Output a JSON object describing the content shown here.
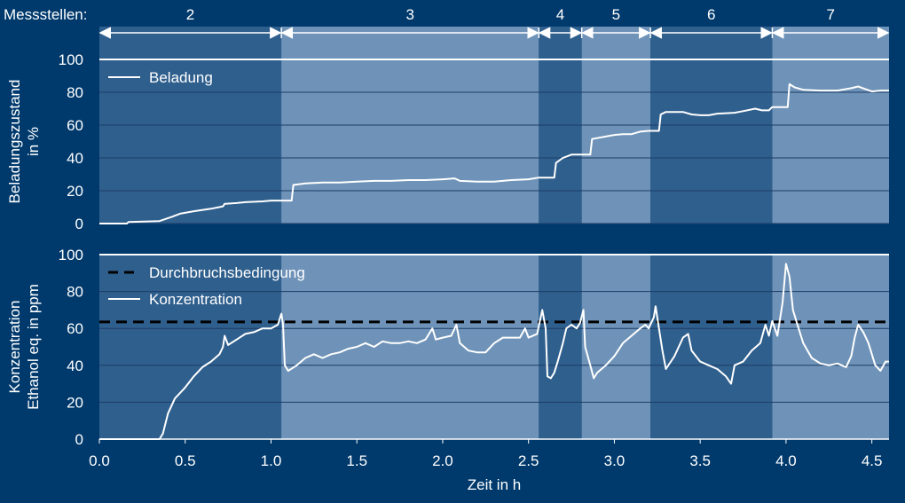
{
  "chart_data": {
    "type": "line",
    "segments_label": "Messstellen:",
    "segments": [
      {
        "label": "2",
        "x_start": 0.0,
        "x_end": 1.06
      },
      {
        "label": "3",
        "x_start": 1.06,
        "x_end": 2.56
      },
      {
        "label": "4",
        "x_start": 2.56,
        "x_end": 2.81
      },
      {
        "label": "5",
        "x_start": 2.81,
        "x_end": 3.21
      },
      {
        "label": "6",
        "x_start": 3.21,
        "x_end": 3.92
      },
      {
        "label": "7",
        "x_start": 3.92,
        "x_end": 4.6
      }
    ],
    "xlabel": "Zeit in h",
    "xlim": [
      0,
      4.6
    ],
    "xticks": [
      0.0,
      0.5,
      1.0,
      1.5,
      2.0,
      2.5,
      3.0,
      3.5,
      4.0,
      4.5
    ],
    "xtick_labels": [
      "0.0",
      "0.5",
      "1.0",
      "1.5",
      "2.0",
      "2.5",
      "3.0",
      "3.5",
      "4.0",
      "4.5"
    ],
    "grid": true,
    "panels": [
      {
        "ylabel_lines": [
          "Beladungszustand",
          "in %"
        ],
        "ylim": [
          0,
          100
        ],
        "yticks": [
          0,
          20,
          40,
          60,
          80,
          100
        ],
        "ytick_labels": [
          "0",
          "20",
          "40",
          "60",
          "80",
          "100"
        ],
        "legend_position": "top-left",
        "series": [
          {
            "name": "Beladung",
            "color": "#ffffff",
            "style": "solid",
            "points": [
              [
                0.0,
                0
              ],
              [
                0.16,
                0
              ],
              [
                0.17,
                1
              ],
              [
                0.35,
                1.5
              ],
              [
                0.42,
                4
              ],
              [
                0.47,
                6
              ],
              [
                0.55,
                7.5
              ],
              [
                0.65,
                9
              ],
              [
                0.72,
                10.5
              ],
              [
                0.73,
                12
              ],
              [
                0.8,
                12.5
              ],
              [
                0.85,
                13
              ],
              [
                0.95,
                13.5
              ],
              [
                1.0,
                14
              ],
              [
                1.06,
                14
              ],
              [
                1.07,
                14
              ],
              [
                1.12,
                14
              ],
              [
                1.13,
                23.5
              ],
              [
                1.2,
                24.5
              ],
              [
                1.3,
                25
              ],
              [
                1.4,
                25
              ],
              [
                1.5,
                25.5
              ],
              [
                1.6,
                26
              ],
              [
                1.7,
                26
              ],
              [
                1.8,
                26.5
              ],
              [
                1.9,
                26.5
              ],
              [
                2.0,
                27
              ],
              [
                2.07,
                27.5
              ],
              [
                2.1,
                26
              ],
              [
                2.2,
                25.5
              ],
              [
                2.3,
                25.5
              ],
              [
                2.4,
                26.5
              ],
              [
                2.5,
                27
              ],
              [
                2.56,
                28
              ],
              [
                2.6,
                28
              ],
              [
                2.65,
                28
              ],
              [
                2.66,
                37
              ],
              [
                2.7,
                40
              ],
              [
                2.75,
                42
              ],
              [
                2.82,
                42
              ],
              [
                2.86,
                42
              ],
              [
                2.87,
                51.5
              ],
              [
                2.95,
                53
              ],
              [
                3.0,
                54
              ],
              [
                3.05,
                54.5
              ],
              [
                3.1,
                54.5
              ],
              [
                3.15,
                56
              ],
              [
                3.2,
                56.5
              ],
              [
                3.26,
                56.5
              ],
              [
                3.27,
                66.5
              ],
              [
                3.3,
                68
              ],
              [
                3.4,
                68
              ],
              [
                3.45,
                66.5
              ],
              [
                3.5,
                66
              ],
              [
                3.55,
                66
              ],
              [
                3.6,
                67
              ],
              [
                3.7,
                67.5
              ],
              [
                3.75,
                68.5
              ],
              [
                3.82,
                70
              ],
              [
                3.86,
                69
              ],
              [
                3.9,
                69
              ],
              [
                3.92,
                71
              ],
              [
                4.01,
                71
              ],
              [
                4.02,
                85
              ],
              [
                4.05,
                83
              ],
              [
                4.1,
                81.5
              ],
              [
                4.2,
                81
              ],
              [
                4.3,
                81
              ],
              [
                4.38,
                82.5
              ],
              [
                4.42,
                83.5
              ],
              [
                4.46,
                82
              ],
              [
                4.5,
                80.5
              ],
              [
                4.55,
                81
              ],
              [
                4.6,
                81
              ]
            ]
          }
        ]
      },
      {
        "ylabel_lines": [
          "Konzentration",
          "Ethanol eq. in ppm"
        ],
        "ylim": [
          0,
          100
        ],
        "yticks": [
          0,
          20,
          40,
          60,
          80,
          100
        ],
        "ytick_labels": [
          "0",
          "20",
          "40",
          "60",
          "80",
          "100"
        ],
        "legend_position": "top-left",
        "series": [
          {
            "name": "Durchbruchsbedingung",
            "color": "#000000",
            "style": "dashed",
            "points": [
              [
                0.0,
                63.5
              ],
              [
                4.6,
                63.5
              ]
            ]
          },
          {
            "name": "Konzentration",
            "color": "#ffffff",
            "style": "solid",
            "points": [
              [
                0.0,
                0
              ],
              [
                0.35,
                0
              ],
              [
                0.37,
                3
              ],
              [
                0.4,
                14
              ],
              [
                0.44,
                22
              ],
              [
                0.5,
                28
              ],
              [
                0.55,
                34
              ],
              [
                0.6,
                39
              ],
              [
                0.65,
                42
              ],
              [
                0.7,
                46
              ],
              [
                0.72,
                50
              ],
              [
                0.73,
                56
              ],
              [
                0.75,
                51
              ],
              [
                0.8,
                54
              ],
              [
                0.85,
                57
              ],
              [
                0.9,
                58
              ],
              [
                0.95,
                60
              ],
              [
                1.0,
                60
              ],
              [
                1.04,
                62
              ],
              [
                1.06,
                68
              ],
              [
                1.07,
                62
              ],
              [
                1.08,
                40
              ],
              [
                1.1,
                37
              ],
              [
                1.15,
                40
              ],
              [
                1.2,
                44
              ],
              [
                1.25,
                46
              ],
              [
                1.3,
                44
              ],
              [
                1.35,
                46
              ],
              [
                1.4,
                47
              ],
              [
                1.45,
                49
              ],
              [
                1.5,
                50
              ],
              [
                1.55,
                52
              ],
              [
                1.6,
                50
              ],
              [
                1.65,
                53
              ],
              [
                1.7,
                52
              ],
              [
                1.75,
                52
              ],
              [
                1.8,
                53
              ],
              [
                1.85,
                52
              ],
              [
                1.9,
                54
              ],
              [
                1.94,
                60
              ],
              [
                1.96,
                54
              ],
              [
                2.0,
                55
              ],
              [
                2.05,
                56
              ],
              [
                2.08,
                62
              ],
              [
                2.1,
                52
              ],
              [
                2.15,
                48
              ],
              [
                2.2,
                47
              ],
              [
                2.25,
                47
              ],
              [
                2.3,
                52
              ],
              [
                2.35,
                55
              ],
              [
                2.4,
                55
              ],
              [
                2.45,
                55
              ],
              [
                2.48,
                60
              ],
              [
                2.5,
                55
              ],
              [
                2.55,
                57
              ],
              [
                2.58,
                70
              ],
              [
                2.6,
                60
              ],
              [
                2.61,
                34
              ],
              [
                2.63,
                33
              ],
              [
                2.65,
                36
              ],
              [
                2.67,
                42
              ],
              [
                2.7,
                52
              ],
              [
                2.72,
                60
              ],
              [
                2.75,
                62
              ],
              [
                2.78,
                60
              ],
              [
                2.8,
                63
              ],
              [
                2.82,
                70
              ],
              [
                2.83,
                50
              ],
              [
                2.86,
                40
              ],
              [
                2.88,
                33
              ],
              [
                2.9,
                36
              ],
              [
                2.95,
                40
              ],
              [
                3.0,
                45
              ],
              [
                3.05,
                52
              ],
              [
                3.1,
                56
              ],
              [
                3.15,
                60
              ],
              [
                3.18,
                62
              ],
              [
                3.2,
                60
              ],
              [
                3.23,
                66
              ],
              [
                3.24,
                72
              ],
              [
                3.26,
                60
              ],
              [
                3.28,
                48
              ],
              [
                3.3,
                38
              ],
              [
                3.35,
                45
              ],
              [
                3.4,
                55
              ],
              [
                3.43,
                57
              ],
              [
                3.45,
                48
              ],
              [
                3.5,
                42
              ],
              [
                3.55,
                40
              ],
              [
                3.6,
                38
              ],
              [
                3.65,
                34
              ],
              [
                3.68,
                30
              ],
              [
                3.7,
                40
              ],
              [
                3.75,
                42
              ],
              [
                3.8,
                48
              ],
              [
                3.85,
                52
              ],
              [
                3.88,
                62
              ],
              [
                3.9,
                56
              ],
              [
                3.92,
                64
              ],
              [
                3.95,
                56
              ],
              [
                3.98,
                74
              ],
              [
                4.0,
                95
              ],
              [
                4.02,
                88
              ],
              [
                4.04,
                70
              ],
              [
                4.06,
                64
              ],
              [
                4.1,
                52
              ],
              [
                4.15,
                44
              ],
              [
                4.2,
                41
              ],
              [
                4.25,
                40
              ],
              [
                4.3,
                41
              ],
              [
                4.35,
                39
              ],
              [
                4.38,
                45
              ],
              [
                4.4,
                55
              ],
              [
                4.42,
                62
              ],
              [
                4.45,
                58
              ],
              [
                4.48,
                52
              ],
              [
                4.52,
                40
              ],
              [
                4.55,
                37
              ],
              [
                4.58,
                42
              ],
              [
                4.6,
                42
              ]
            ]
          }
        ]
      }
    ]
  }
}
